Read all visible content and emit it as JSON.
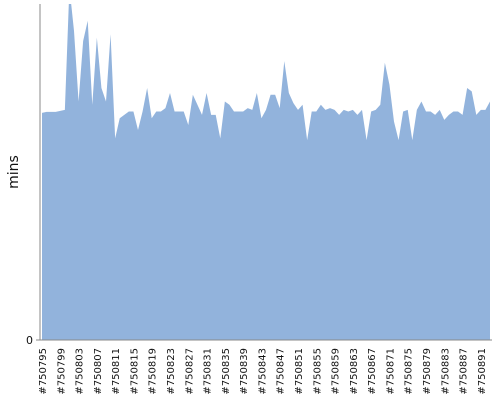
{
  "chart_data": {
    "type": "area",
    "y_label": "mins",
    "color": "#92b3dc",
    "categories": [
      "#750795",
      null,
      null,
      null,
      "#750799",
      null,
      null,
      null,
      "#750803",
      null,
      null,
      null,
      "#750807",
      null,
      null,
      null,
      "#750811",
      null,
      null,
      null,
      "#750815",
      null,
      null,
      null,
      "#750819",
      null,
      null,
      null,
      "#750823",
      null,
      null,
      null,
      "#750827",
      null,
      null,
      null,
      "#750831",
      null,
      null,
      null,
      "#750835",
      null,
      null,
      null,
      "#750839",
      null,
      null,
      null,
      "#750843",
      null,
      null,
      null,
      "#750847",
      null,
      null,
      null,
      "#750851",
      null,
      null,
      null,
      "#750855",
      null,
      null,
      null,
      "#750859",
      null,
      null,
      null,
      "#750863",
      null,
      null,
      null,
      "#750867",
      null,
      null,
      null,
      "#750871",
      null,
      null,
      null,
      "#750875",
      null,
      null,
      null,
      "#750879",
      null,
      null,
      null,
      "#750883",
      null,
      null,
      null,
      "#750887",
      null,
      null,
      null,
      "#750891",
      null,
      null
    ],
    "values": [
      67.6,
      67.9,
      67.9,
      67.9,
      68.2,
      68.5,
      105,
      92,
      71,
      89,
      95,
      70,
      90,
      75,
      71,
      91,
      60,
      66,
      67,
      68,
      68,
      62.5,
      68,
      75,
      66,
      68,
      68,
      69,
      73.5,
      68,
      68,
      68,
      64,
      73,
      70,
      67,
      73.5,
      67,
      67,
      60,
      71,
      70,
      68,
      68,
      68,
      69,
      68.5,
      73.5,
      66,
      68.5,
      73,
      73,
      69,
      83,
      73.5,
      70.5,
      68.5,
      70,
      59.5,
      68,
      68,
      70,
      68.5,
      69,
      68.5,
      67,
      68.5,
      68,
      68.5,
      67,
      68.5,
      59.5,
      68,
      68.5,
      70,
      82.5,
      76,
      65,
      59.5,
      68,
      68.5,
      59.5,
      68.5,
      71,
      68,
      68,
      67,
      68.5,
      65.5,
      67,
      68,
      68,
      67,
      75,
      74,
      67,
      68.5,
      68.5,
      71
    ],
    "ylim": [
      0,
      100
    ],
    "yticks": [
      0
    ]
  }
}
